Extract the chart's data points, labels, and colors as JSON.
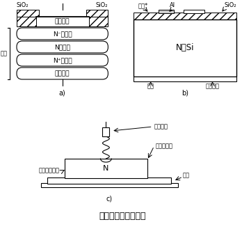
{
  "title": "肖特基二极管的结构",
  "title_fontsize": 9,
  "bg_color": "#ffffff",
  "label_a": "a)",
  "label_b": "b)",
  "label_c": "c)",
  "sio2_left": "SiO₂",
  "sio2_right": "SiO₂",
  "anode_metal": "阳极金属",
  "n_minus": "N⁻外延层",
  "n_base": "N型基片",
  "n_plus": "N⁺阴极层",
  "cathode_metal": "阴极金属",
  "silicon": "硅片",
  "electrode_top": "电极*",
  "Al": "Al",
  "sio2_b": "SiO₂",
  "n_si": "N型Si",
  "electrode_bottom": "电极",
  "ohmic_b": "欧姆接触",
  "metal_needle": "金属触针",
  "semiconductor": "半导体晶片",
  "ohmic_electrode": "欧姆接触电极",
  "N_label": "N",
  "support": "支架"
}
